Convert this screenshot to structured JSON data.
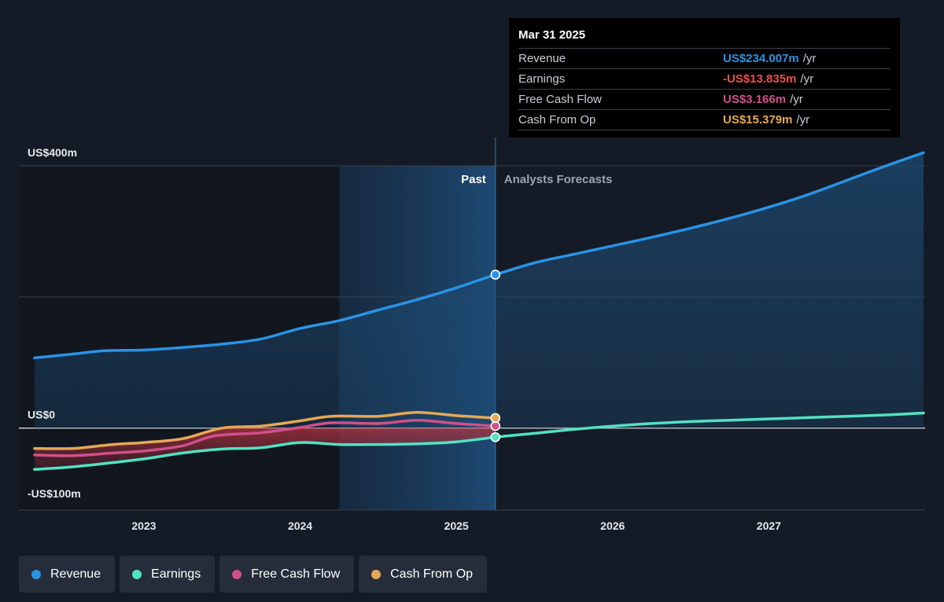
{
  "chart_data": {
    "type": "line",
    "y_axis": {
      "ylim": [
        -125,
        400
      ],
      "labels": [
        {
          "value": 400,
          "text": "US$400m"
        },
        {
          "value": 0,
          "text": "US$0"
        },
        {
          "value": -100,
          "text": "-US$100m"
        }
      ],
      "gridlines": [
        400,
        200,
        0
      ]
    },
    "x_axis": {
      "xlim": [
        2022.2,
        2028.0
      ],
      "ticks": [
        {
          "value": 2023,
          "label": "2023"
        },
        {
          "value": 2024,
          "label": "2024"
        },
        {
          "value": 2025,
          "label": "2025"
        },
        {
          "value": 2026,
          "label": "2026"
        },
        {
          "value": 2027,
          "label": "2027"
        }
      ]
    },
    "regions": {
      "past_label": "Past",
      "forecast_label": "Analysts Forecasts",
      "highlight_start": 2024.25,
      "divider": 2025.25
    },
    "series": [
      {
        "name": "Revenue",
        "color": "#2a93e4",
        "area": true,
        "points": [
          [
            2022.3,
            107
          ],
          [
            2022.55,
            113
          ],
          [
            2022.75,
            118
          ],
          [
            2023.0,
            119
          ],
          [
            2023.25,
            123
          ],
          [
            2023.5,
            128
          ],
          [
            2023.75,
            136
          ],
          [
            2024.0,
            152
          ],
          [
            2024.25,
            164
          ],
          [
            2024.5,
            180
          ],
          [
            2024.75,
            196
          ],
          [
            2025.0,
            214
          ],
          [
            2025.25,
            234.007
          ],
          [
            2025.5,
            252
          ],
          [
            2025.75,
            265
          ],
          [
            2026.0,
            278
          ],
          [
            2026.25,
            291
          ],
          [
            2026.5,
            305
          ],
          [
            2026.75,
            320
          ],
          [
            2027.0,
            337
          ],
          [
            2027.25,
            356
          ],
          [
            2027.5,
            378
          ],
          [
            2027.75,
            400
          ],
          [
            2027.99,
            420
          ]
        ]
      },
      {
        "name": "Earnings",
        "color": "#51e2c2",
        "area": false,
        "points": [
          [
            2022.3,
            -63
          ],
          [
            2022.5,
            -60
          ],
          [
            2022.75,
            -54
          ],
          [
            2023.0,
            -47
          ],
          [
            2023.25,
            -38
          ],
          [
            2023.5,
            -32
          ],
          [
            2023.75,
            -30
          ],
          [
            2024.0,
            -22
          ],
          [
            2024.25,
            -25
          ],
          [
            2024.5,
            -25
          ],
          [
            2024.75,
            -24
          ],
          [
            2025.0,
            -21
          ],
          [
            2025.25,
            -13.835
          ],
          [
            2025.5,
            -8
          ],
          [
            2025.75,
            -2
          ],
          [
            2026.0,
            3
          ],
          [
            2026.25,
            7
          ],
          [
            2026.5,
            10
          ],
          [
            2026.75,
            12
          ],
          [
            2027.0,
            14
          ],
          [
            2027.25,
            16
          ],
          [
            2027.5,
            18
          ],
          [
            2027.75,
            20
          ],
          [
            2027.99,
            23
          ]
        ]
      },
      {
        "name": "Free Cash Flow",
        "color": "#d0508a",
        "area": false,
        "points": [
          [
            2022.3,
            -41
          ],
          [
            2022.55,
            -42
          ],
          [
            2022.8,
            -38
          ],
          [
            2023.0,
            -35
          ],
          [
            2023.25,
            -27
          ],
          [
            2023.45,
            -12
          ],
          [
            2023.75,
            -7
          ],
          [
            2024.0,
            1
          ],
          [
            2024.2,
            8
          ],
          [
            2024.5,
            7
          ],
          [
            2024.75,
            12
          ],
          [
            2025.0,
            7
          ],
          [
            2025.25,
            3.166
          ]
        ]
      },
      {
        "name": "Cash From Op",
        "color": "#e5a855",
        "area": false,
        "points": [
          [
            2022.3,
            -31
          ],
          [
            2022.55,
            -31
          ],
          [
            2022.8,
            -25
          ],
          [
            2023.0,
            -22
          ],
          [
            2023.25,
            -16
          ],
          [
            2023.5,
            0
          ],
          [
            2023.75,
            3
          ],
          [
            2024.0,
            11
          ],
          [
            2024.2,
            18
          ],
          [
            2024.5,
            18
          ],
          [
            2024.75,
            24
          ],
          [
            2025.0,
            19
          ],
          [
            2025.25,
            15.379
          ]
        ]
      }
    ],
    "legend": [
      "Revenue",
      "Earnings",
      "Free Cash Flow",
      "Cash From Op"
    ],
    "tooltip": {
      "date": "Mar 31 2025",
      "rows": [
        {
          "name": "Revenue",
          "value": "US$234.007m",
          "unit": "/yr",
          "color": "#2a93e4"
        },
        {
          "name": "Earnings",
          "value": "-US$13.835m",
          "unit": "/yr",
          "color": "#ef4e4e"
        },
        {
          "name": "Free Cash Flow",
          "value": "US$3.166m",
          "unit": "/yr",
          "color": "#d0508a"
        },
        {
          "name": "Cash From Op",
          "value": "US$15.379m",
          "unit": "/yr",
          "color": "#e5a855"
        }
      ]
    }
  }
}
